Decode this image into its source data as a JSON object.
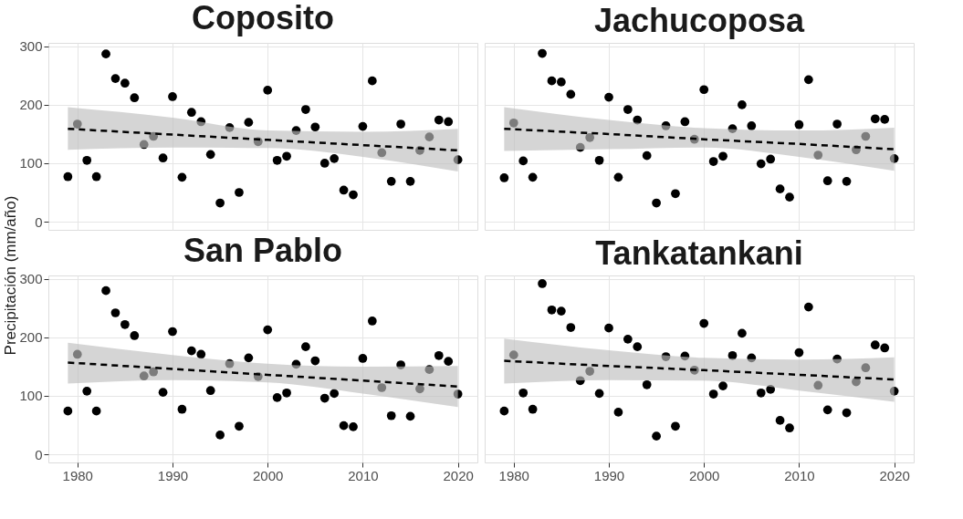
{
  "chart_data": [
    {
      "type": "scatter",
      "title": "Coposito",
      "ylabel": "Precipitación (mm/año)",
      "xlim": [
        1976.95,
        2022.05
      ],
      "ylim": [
        -14,
        306
      ],
      "xticks": [
        1980,
        1990,
        2000,
        2010,
        2020
      ],
      "yticks": [
        0,
        100,
        200,
        300
      ],
      "grid": true,
      "tick_labels": "y",
      "series": [
        {
          "marker": "circle",
          "color": "#000000",
          "x": [
            1979,
            1980,
            1981,
            1982,
            1983,
            1984,
            1985,
            1986,
            1987,
            1988,
            1989,
            1990,
            1991,
            1992,
            1993,
            1994,
            1995,
            1996,
            1997,
            1998,
            1999,
            2000,
            2001,
            2002,
            2003,
            2004,
            2005,
            2006,
            2007,
            2008,
            2009,
            2010,
            2011,
            2012,
            2013,
            2014,
            2015,
            2016,
            2017,
            2018,
            2019,
            2020
          ],
          "values": [
            77,
            167,
            105,
            77,
            287,
            245,
            237,
            212,
            132,
            146,
            109,
            214,
            76,
            187,
            171,
            115,
            32,
            161,
            50,
            170,
            137,
            225,
            105,
            112,
            156,
            192,
            162,
            100,
            108,
            54,
            46,
            163,
            241,
            118,
            69,
            167,
            69,
            122,
            145,
            174,
            171,
            106
          ]
        },
        {
          "type": "line",
          "color": "#000000",
          "line_style": "dashed",
          "x": [
            1979,
            1990,
            2000,
            2010,
            2020
          ],
          "values": [
            159,
            149,
            140,
            131,
            122
          ],
          "lower": [
            123,
            127,
            126,
            111,
            86
          ],
          "upper": [
            196,
            178,
            156,
            154,
            159
          ]
        }
      ]
    },
    {
      "type": "scatter",
      "title": "Jachucoposa",
      "xlim": [
        1976.95,
        2022.05
      ],
      "ylim": [
        -14,
        306
      ],
      "xticks": [
        1980,
        1990,
        2000,
        2010,
        2020
      ],
      "yticks": [
        0,
        100,
        200,
        300
      ],
      "grid": true,
      "tick_labels": false,
      "series": [
        {
          "marker": "circle",
          "color": "#000000",
          "x": [
            1979,
            1980,
            1981,
            1982,
            1983,
            1984,
            1985,
            1986,
            1987,
            1988,
            1989,
            1990,
            1991,
            1992,
            1993,
            1994,
            1995,
            1996,
            1997,
            1998,
            1999,
            2000,
            2001,
            2002,
            2003,
            2004,
            2005,
            2006,
            2007,
            2008,
            2009,
            2010,
            2011,
            2012,
            2013,
            2014,
            2015,
            2016,
            2017,
            2018,
            2019,
            2020
          ],
          "values": [
            75,
            169,
            104,
            76,
            288,
            241,
            239,
            218,
            127,
            144,
            105,
            213,
            76,
            192,
            174,
            113,
            32,
            164,
            48,
            171,
            141,
            226,
            103,
            112,
            159,
            200,
            164,
            99,
            107,
            56,
            42,
            166,
            243,
            114,
            70,
            167,
            69,
            123,
            146,
            176,
            175,
            108
          ]
        },
        {
          "type": "line",
          "color": "#000000",
          "line_style": "dashed",
          "x": [
            1979,
            1990,
            2000,
            2010,
            2020
          ],
          "values": [
            159,
            150,
            141,
            133,
            124
          ],
          "lower": [
            121,
            124,
            127,
            111,
            87
          ],
          "upper": [
            196,
            174,
            160,
            156,
            161
          ]
        }
      ]
    },
    {
      "type": "scatter",
      "title": "San Pablo",
      "xlim": [
        1976.95,
        2022.05
      ],
      "ylim": [
        -14,
        306
      ],
      "xticks": [
        1980,
        1990,
        2000,
        2010,
        2020
      ],
      "yticks": [
        0,
        100,
        200,
        300
      ],
      "grid": true,
      "series": [
        {
          "marker": "circle",
          "color": "#000000",
          "x": [
            1979,
            1980,
            1981,
            1982,
            1983,
            1984,
            1985,
            1986,
            1987,
            1988,
            1989,
            1990,
            1991,
            1992,
            1993,
            1994,
            1995,
            1996,
            1997,
            1998,
            1999,
            2000,
            2001,
            2002,
            2003,
            2004,
            2005,
            2006,
            2007,
            2008,
            2009,
            2010,
            2011,
            2012,
            2013,
            2014,
            2015,
            2016,
            2017,
            2018,
            2019,
            2020
          ],
          "values": [
            74,
            171,
            108,
            74,
            280,
            242,
            222,
            203,
            134,
            141,
            106,
            210,
            77,
            177,
            171,
            109,
            33,
            155,
            48,
            165,
            133,
            213,
            97,
            105,
            154,
            184,
            160,
            96,
            104,
            49,
            47,
            164,
            228,
            114,
            66,
            153,
            65,
            112,
            145,
            169,
            159,
            103
          ]
        },
        {
          "type": "line",
          "color": "#000000",
          "line_style": "dashed",
          "x": [
            1979,
            1990,
            2000,
            2010,
            2020
          ],
          "values": [
            157,
            146,
            136,
            126,
            116
          ],
          "lower": [
            121,
            127,
            123,
            104,
            81
          ],
          "upper": [
            191,
            170,
            155,
            150,
            151
          ]
        }
      ]
    },
    {
      "type": "scatter",
      "title": "Tankatankani",
      "xlim": [
        1976.95,
        2022.05
      ],
      "ylim": [
        -14,
        306
      ],
      "xticks": [
        1980,
        1990,
        2000,
        2010,
        2020
      ],
      "yticks": [
        0,
        100,
        200,
        300
      ],
      "grid": true,
      "tick_labels": "x",
      "series": [
        {
          "marker": "circle",
          "color": "#000000",
          "x": [
            1979,
            1980,
            1981,
            1982,
            1983,
            1984,
            1985,
            1986,
            1987,
            1988,
            1989,
            1990,
            1991,
            1992,
            1993,
            1994,
            1995,
            1996,
            1997,
            1998,
            1999,
            2000,
            2001,
            2002,
            2003,
            2004,
            2005,
            2006,
            2007,
            2008,
            2009,
            2010,
            2011,
            2012,
            2013,
            2014,
            2015,
            2016,
            2017,
            2018,
            2019,
            2020
          ],
          "values": [
            74,
            170,
            105,
            77,
            292,
            247,
            245,
            217,
            126,
            142,
            104,
            216,
            72,
            197,
            184,
            119,
            31,
            167,
            48,
            168,
            144,
            224,
            103,
            117,
            169,
            207,
            165,
            105,
            111,
            58,
            45,
            174,
            252,
            118,
            76,
            163,
            71,
            124,
            148,
            187,
            182,
            108
          ]
        },
        {
          "type": "line",
          "color": "#000000",
          "line_style": "dashed",
          "x": [
            1979,
            1990,
            2000,
            2010,
            2020
          ],
          "values": [
            160,
            151,
            144,
            136,
            128
          ],
          "lower": [
            121,
            127,
            126,
            109,
            90
          ],
          "upper": [
            198,
            178,
            165,
            162,
            166
          ]
        }
      ]
    }
  ]
}
